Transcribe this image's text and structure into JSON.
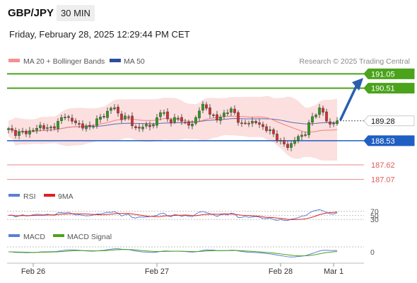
{
  "header": {
    "symbol": "GBP/JPY",
    "timeframe": "30 MIN"
  },
  "datetime": "Friday, February 28, 2025 12:29:44 PM CET",
  "legend": {
    "ma20": "MA 20 + Bollinger Bands",
    "ma50": "MA 50",
    "credit": "Research © 2025 Trading Central"
  },
  "colors": {
    "green": "#4aa31b",
    "blue": "#1f5fc4",
    "red": "#e05a5a",
    "candle_up": "#2f9a1d",
    "candle_down": "#d03030",
    "band": "#fbd7d7",
    "ma20": "#f07f7f",
    "ma50": "#5a6fb0",
    "rsi": "#5b7fd6",
    "nine_ma": "#e02020",
    "macd": "#5b7fd6",
    "macd_signal": "#4aa31b"
  },
  "chart_data": {
    "type": "candlestick",
    "ylim": [
      186.9,
      191.3
    ],
    "levels": [
      {
        "value": 191.05,
        "label": "191.05",
        "kind": "resistance"
      },
      {
        "value": 190.51,
        "label": "190.51",
        "kind": "resistance"
      },
      {
        "value": 189.28,
        "label": "189.28",
        "kind": "last"
      },
      {
        "value": 188.53,
        "label": "188.53",
        "kind": "pivot"
      },
      {
        "value": 187.62,
        "label": "187.62",
        "kind": "support"
      },
      {
        "value": 187.07,
        "label": "187.07",
        "kind": "support"
      }
    ],
    "x_labels": [
      {
        "label": "Feb 26",
        "index": 7
      },
      {
        "label": "Feb 27",
        "index": 42
      },
      {
        "label": "Feb 28",
        "index": 77
      },
      {
        "label": "Mar 1",
        "index": 92
      }
    ],
    "candles_count": 94,
    "key_prices": [
      188.95,
      188.8,
      188.85,
      188.9,
      189.1,
      188.95,
      189.15,
      189.5,
      189.25,
      189.1,
      189.0,
      189.3,
      189.5,
      189.85,
      189.4,
      189.4,
      188.9,
      189.15,
      189.05,
      189.7,
      189.25,
      189.4,
      189.2,
      189.1,
      189.9,
      189.65,
      189.3,
      189.6,
      189.7,
      189.1,
      189.25,
      189.2,
      189.0,
      188.8,
      188.45,
      188.3,
      188.65,
      188.8,
      189.5,
      189.75,
      189.1,
      189.3
    ],
    "projection": {
      "from": 189.28,
      "to": 190.95
    },
    "rsi": {
      "label": "RSI",
      "ma_label": "9MA",
      "levels": [
        70,
        50,
        30
      ]
    },
    "macd": {
      "label": "MACD",
      "signal_label": "MACD Signal",
      "zero": "0"
    }
  }
}
